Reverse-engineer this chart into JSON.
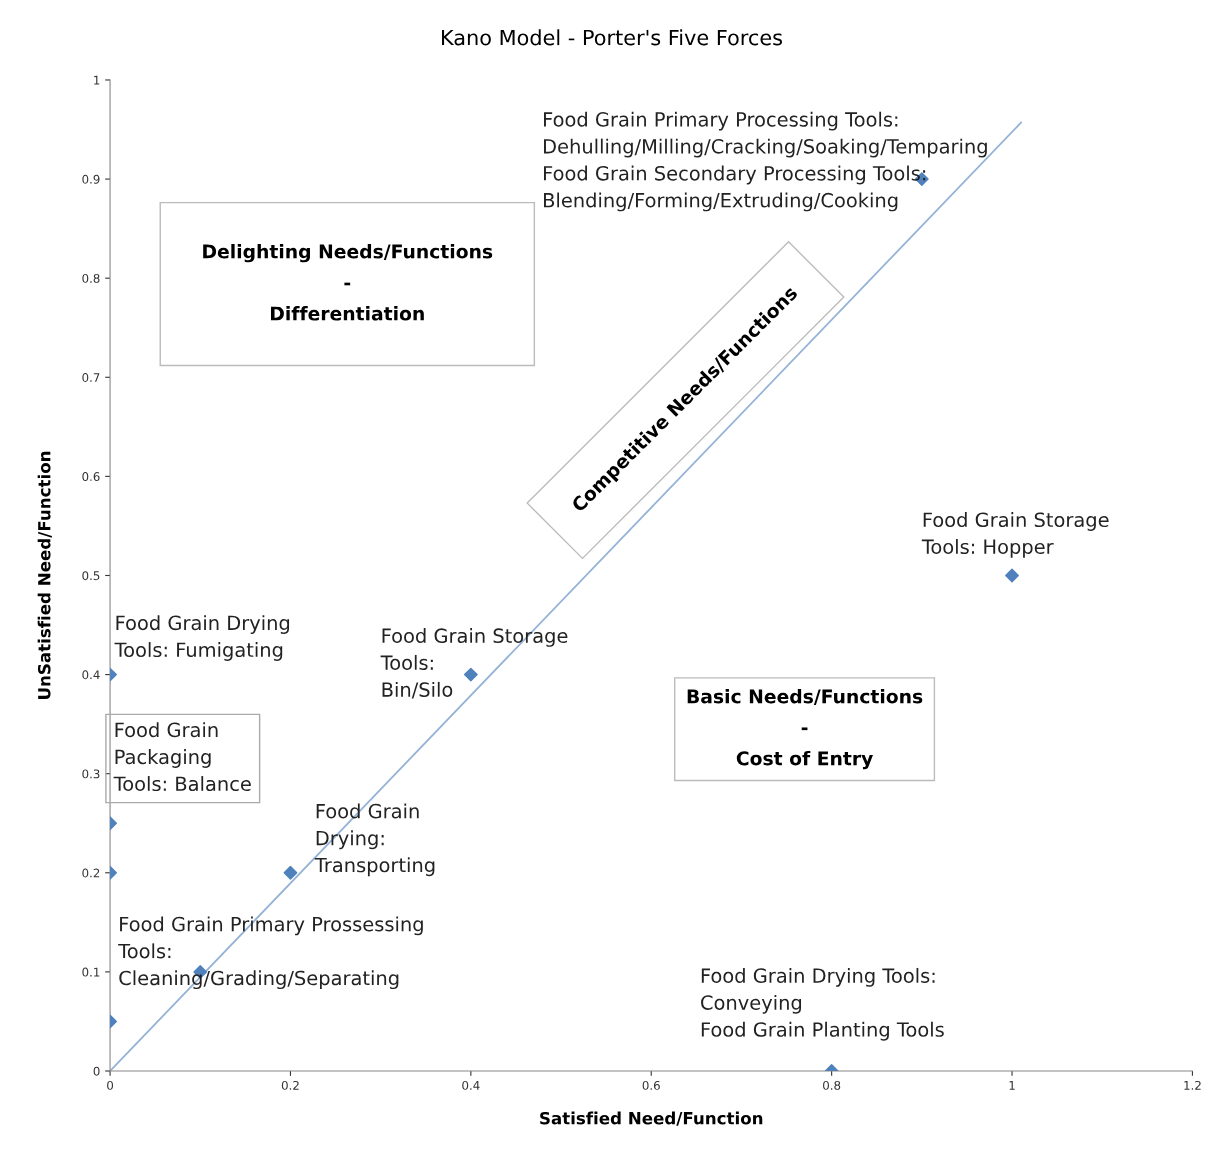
{
  "chart_data": {
    "type": "scatter",
    "title": "Kano Model - Porter's Five Forces",
    "xlabel": "Satisfied Need/Function",
    "ylabel": "UnSatisfied Need/Function",
    "xlim": [
      0,
      1.2
    ],
    "xticks": [
      0,
      0.2,
      0.4,
      0.6,
      0.8,
      1,
      1.2
    ],
    "ylim": [
      0,
      1
    ],
    "yticks": [
      0,
      0.1,
      0.2,
      0.3,
      0.4,
      0.5,
      0.6,
      0.7,
      0.8,
      0.9,
      1
    ],
    "grid": false,
    "series": [
      {
        "marker": "diamond",
        "color": "#4f81bd",
        "x": [
          0,
          0,
          0,
          0,
          0.1,
          0.2,
          0.4,
          0.9,
          1,
          0.8
        ],
        "values": [
          0.4,
          0.25,
          0.2,
          0.05,
          0.1,
          0.2,
          0.4,
          0.9,
          0.5,
          0
        ]
      },
      {
        "type": "line",
        "color": "#95b3d7",
        "x": [
          0,
          1.01
        ],
        "values": [
          0,
          0.957
        ]
      }
    ],
    "annotations": [
      {
        "text": "Food Grain Primary Processing Tools:\nDehulling/Milling/Cracking/Soaking/Temparing\nFood Grain Secondary Processing Tools:\nBlending/Forming/Extruding/Cooking",
        "x": 0.9,
        "y": 0.9
      },
      {
        "text": "Food Grain Storage\nTools: Hopper",
        "x": 1,
        "y": 0.5
      },
      {
        "text": "Food Grain Drying\nTools: Fumigating",
        "x": 0,
        "y": 0.4
      },
      {
        "text": "Food Grain Storage\nTools:\nBin/Silo",
        "x": 0.4,
        "y": 0.4
      },
      {
        "text": "Food Grain\nPackaging\nTools: Balance",
        "x": 0,
        "y": 0.25
      },
      {
        "text": "Food Grain\nDrying:\nTransporting",
        "x": 0.2,
        "y": 0.2
      },
      {
        "text": "Food Grain Primary Prossessing\nTools:\nCleaning/Grading/Separating",
        "x": 0.1,
        "y": 0.1
      },
      {
        "text": "Food Grain Drying Tools:\nConveying\nFood Grain Planting Tools",
        "x": 0.8,
        "y": 0
      },
      "Delighting Needs/Functions\n-\nDifferentiation",
      "Competitive Needs/Functions",
      "Basic Needs/Functions\n-\nCost of Entry"
    ]
  }
}
